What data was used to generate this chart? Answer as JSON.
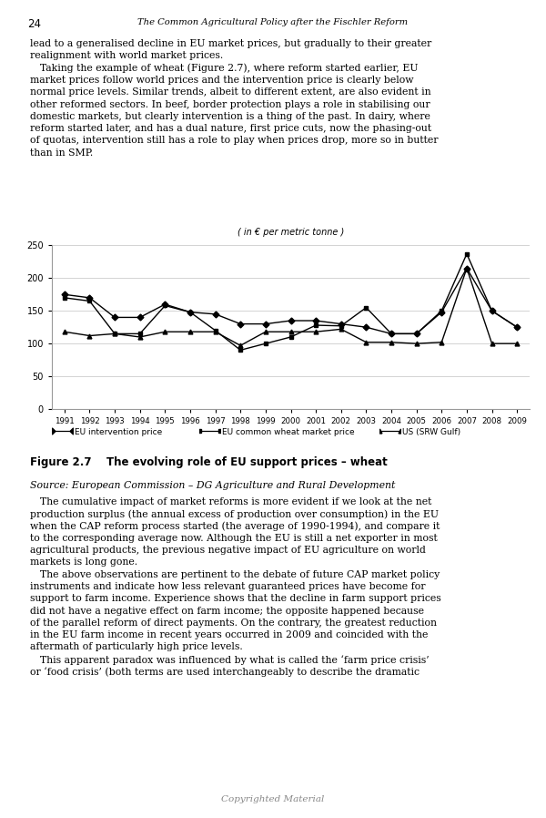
{
  "years": [
    1991,
    1992,
    1993,
    1994,
    1995,
    1996,
    1997,
    1998,
    1999,
    2000,
    2001,
    2002,
    2003,
    2004,
    2005,
    2006,
    2007,
    2008,
    2009
  ],
  "eu_intervention": [
    175,
    170,
    140,
    140,
    160,
    148,
    145,
    130,
    130,
    135,
    135,
    130,
    125,
    115,
    115,
    148,
    215,
    150,
    125
  ],
  "eu_wheat_market": [
    170,
    165,
    115,
    115,
    158,
    148,
    120,
    90,
    100,
    110,
    128,
    127,
    155,
    115,
    115,
    150,
    237,
    150,
    125
  ],
  "us_srw_gulf": [
    118,
    112,
    115,
    110,
    118,
    118,
    118,
    97,
    118,
    118,
    118,
    122,
    102,
    102,
    100,
    102,
    215,
    100,
    100
  ],
  "ylim": [
    0,
    250
  ],
  "yticks": [
    0,
    50,
    100,
    150,
    200,
    250
  ],
  "chart_subtitle": "( in € per metric tonne )",
  "bg_color": "#ffffff",
  "grid_color": "#cccccc",
  "page_number": "24",
  "header_title": "The Common Agricultural Policy after the Fischler Reform",
  "figure_caption": "Figure 2.7    The evolving role of EU support prices – wheat",
  "figure_source": "Source: European Commission – DG Agriculture and Rural Development",
  "legend_labels": [
    "EU intervention price",
    "EU common wheat market price",
    "US (SRW Gulf)"
  ],
  "legend_markers": [
    "D",
    "s",
    "^"
  ],
  "footer_text": "Copyrighted Material",
  "body_above_lines": [
    "lead to a generalised decline in EU market prices, but gradually to their greater",
    "realignment with world market prices.",
    " Taking the example of wheat (Figure 2.7), where reform started earlier, EU",
    "market prices follow world prices and the intervention price is clearly below",
    "normal price levels. Similar trends, albeit to different extent, are also evident in",
    "other reformed sectors. In beef, border protection plays a role in stabilising our",
    "domestic markets, but clearly intervention is a thing of the past. In dairy, where",
    "reform started later, and has a dual nature, first price cuts, now the phasing-out",
    "of quotas, intervention still has a role to play when prices drop, more so in butter",
    "than in SMP."
  ],
  "body_below_lines": [
    " The cumulative impact of market reforms is more evident if we look at the net",
    "production surplus (the annual excess of production over consumption) in the EU",
    "when the CAP reform process started (the average of 1990-1994), and compare it",
    "to the corresponding average now. Although the EU is still a net exporter in most",
    "agricultural products, the previous negative impact of EU agriculture on world",
    "markets is long gone.",
    " The above observations are pertinent to the debate of future CAP market policy",
    "instruments and indicate how less relevant guaranteed prices have become for",
    "support to farm income. Experience shows that the decline in farm support prices",
    "did not have a negative effect on farm income; the opposite happened because",
    "of the parallel reform of direct payments. On the contrary, the greatest reduction",
    "in the EU farm income in recent years occurred in 2009 and coincided with the",
    "aftermath of particularly high price levels.",
    " This apparent paradox was influenced by what is called the ‘farm price crisis’",
    "or ‘food crisis’ (both terms are used interchangeably to describe the dramatic"
  ]
}
